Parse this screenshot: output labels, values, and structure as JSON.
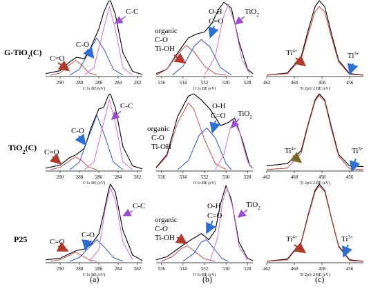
{
  "row_labels": [
    "G-TiO2(C)",
    "TiO2(C)",
    "P25"
  ],
  "panel_labels": [
    "(a)",
    "(b)",
    "(c)"
  ],
  "colors": {
    "envelope": "#111111",
    "fit_c_c": "#d070c8",
    "fit_c_o": "#3050c0",
    "fit_co": "#c05050",
    "fit_ti4": "#c04040",
    "arrow_red": "#b03a2e",
    "arrow_blue": "#2f6fd0",
    "arrow_purple": "#9b4dca",
    "arrow_olive": "#7a6a2a"
  },
  "chart_data": [
    {
      "type": "line",
      "panel": "a",
      "row": "G-TiO2(C)",
      "xlabel": "C 1s   BE (eV)",
      "xlim": [
        291.5,
        281.5
      ],
      "xticks": [
        290,
        288,
        286,
        284,
        282
      ],
      "annotations": [
        "C=O",
        "C-O",
        "C-C"
      ],
      "series": [
        {
          "role": "envelope",
          "x": [
            291.5,
            290,
            289,
            288.3,
            287.5,
            286.8,
            286,
            285.5,
            285,
            284.8,
            284.3,
            283.5,
            282.5,
            281.5
          ],
          "values": [
            0.02,
            0.06,
            0.18,
            0.24,
            0.22,
            0.38,
            0.62,
            0.84,
            0.99,
            1.0,
            0.82,
            0.3,
            0.05,
            0.01
          ]
        },
        {
          "role": "component",
          "name": "C=O",
          "x": [
            291,
            290,
            289,
            288.4,
            287.8,
            287,
            286.2
          ],
          "values": [
            0.0,
            0.03,
            0.14,
            0.2,
            0.14,
            0.03,
            0.0
          ]
        },
        {
          "role": "component",
          "name": "C-O",
          "x": [
            289,
            288,
            287,
            286.2,
            285.4,
            284.5,
            283.5
          ],
          "values": [
            0.0,
            0.08,
            0.32,
            0.5,
            0.33,
            0.08,
            0.0
          ]
        },
        {
          "role": "component",
          "name": "C-C",
          "x": [
            287.5,
            286.5,
            285.5,
            284.9,
            284.3,
            283.5,
            282.5
          ],
          "values": [
            0.0,
            0.1,
            0.62,
            0.92,
            0.62,
            0.1,
            0.0
          ]
        }
      ]
    },
    {
      "type": "line",
      "panel": "b",
      "row": "G-TiO2(C)",
      "xlabel": "O 1s   BE (eV)",
      "xlim": [
        536.5,
        527.5
      ],
      "xticks": [
        536,
        534,
        532,
        530,
        528
      ],
      "annotations": [
        "organic",
        "C-O",
        "Ti-OH",
        "O-H",
        "C=O",
        "TiO2"
      ],
      "series": [
        {
          "role": "envelope",
          "x": [
            536.5,
            535.5,
            534.5,
            533.5,
            532.8,
            532,
            531.3,
            530.7,
            530.2,
            529.5,
            528.8,
            528,
            527.5
          ],
          "values": [
            0.02,
            0.08,
            0.3,
            0.5,
            0.55,
            0.58,
            0.7,
            0.88,
            0.98,
            0.9,
            0.45,
            0.08,
            0.02
          ]
        },
        {
          "role": "component",
          "name": "organic C-O Ti-OH",
          "x": [
            536.5,
            535.5,
            534.5,
            533.7,
            533,
            532,
            531,
            530
          ],
          "values": [
            0.0,
            0.08,
            0.28,
            0.4,
            0.32,
            0.12,
            0.02,
            0.0
          ]
        },
        {
          "role": "component",
          "name": "O-H C=O",
          "x": [
            535,
            534,
            533,
            532.3,
            531.5,
            530.5,
            529.5
          ],
          "values": [
            0.0,
            0.12,
            0.38,
            0.48,
            0.38,
            0.1,
            0.0
          ]
        },
        {
          "role": "component",
          "name": "TiO2",
          "x": [
            532,
            531,
            530.3,
            529.8,
            529.2,
            528.5,
            527.8
          ],
          "values": [
            0.0,
            0.25,
            0.75,
            0.95,
            0.7,
            0.2,
            0.02
          ]
        }
      ]
    },
    {
      "type": "line",
      "panel": "c",
      "row": "G-TiO2(C)",
      "xlabel": "Ti   2p3/ 2   BE  (eV)",
      "xlim": [
        462,
        455
      ],
      "xticks": [
        462,
        460,
        458,
        456
      ],
      "annotations": [
        "Ti4+",
        "Ti3+"
      ],
      "series": [
        {
          "role": "envelope",
          "x": [
            462,
            460.5,
            459.5,
            459,
            458.5,
            458.2,
            457.8,
            457.3,
            456.8,
            456,
            455
          ],
          "values": [
            0.0,
            0.03,
            0.25,
            0.6,
            0.92,
            1.0,
            0.92,
            0.55,
            0.2,
            0.02,
            0.0
          ]
        },
        {
          "role": "component",
          "name": "Ti4+",
          "x": [
            462,
            460.5,
            459.5,
            459,
            458.5,
            458.2,
            457.8,
            457.3,
            456.8,
            456,
            455
          ],
          "values": [
            0.0,
            0.02,
            0.22,
            0.55,
            0.85,
            0.92,
            0.85,
            0.5,
            0.18,
            0.01,
            0.0
          ]
        }
      ]
    },
    {
      "type": "line",
      "panel": "a",
      "row": "TiO2(C)",
      "xlabel": "C 1s   BE (eV)",
      "xlim": [
        291.5,
        281.5
      ],
      "xticks": [
        290,
        288,
        286,
        284,
        282
      ],
      "annotations": [
        "C=O",
        "C-O",
        "C-C"
      ],
      "series": [
        {
          "role": "envelope",
          "x": [
            291.5,
            290,
            289,
            288.3,
            287.5,
            286.8,
            286,
            285.5,
            285,
            284.8,
            284.3,
            283.5,
            282.5,
            281.5
          ],
          "values": [
            0.02,
            0.06,
            0.16,
            0.2,
            0.28,
            0.55,
            0.8,
            0.82,
            0.98,
            1.0,
            0.82,
            0.3,
            0.05,
            0.01
          ]
        },
        {
          "role": "component",
          "name": "C=O",
          "x": [
            291,
            290,
            289,
            288.4,
            287.8,
            287,
            286.2
          ],
          "values": [
            0.0,
            0.03,
            0.12,
            0.17,
            0.12,
            0.03,
            0.0
          ]
        },
        {
          "role": "component",
          "name": "C-O",
          "x": [
            289,
            288,
            287,
            286.2,
            285.4,
            284.5,
            283.5
          ],
          "values": [
            0.0,
            0.1,
            0.45,
            0.72,
            0.45,
            0.1,
            0.0
          ]
        },
        {
          "role": "component",
          "name": "C-C",
          "x": [
            287.5,
            286.5,
            285.5,
            284.9,
            284.3,
            283.5,
            282.5
          ],
          "values": [
            0.0,
            0.1,
            0.62,
            0.92,
            0.62,
            0.1,
            0.0
          ]
        }
      ]
    },
    {
      "type": "line",
      "panel": "b",
      "row": "TiO2(C)",
      "xlabel": "O 1s   BE (eV)",
      "xlim": [
        536.5,
        527.5
      ],
      "xticks": [
        536,
        534,
        532,
        530,
        528
      ],
      "annotations": [
        "organic",
        "C-O",
        "Ti-OH",
        "O-H",
        "C=O",
        "TiO2"
      ],
      "series": [
        {
          "role": "envelope",
          "x": [
            536.5,
            535.5,
            534.5,
            533.5,
            533,
            532.3,
            531.5,
            530.5,
            529.8,
            529.2,
            528.5,
            527.8,
            527.5
          ],
          "values": [
            0.03,
            0.2,
            0.7,
            0.97,
            1.0,
            0.92,
            0.8,
            0.58,
            0.62,
            0.68,
            0.4,
            0.06,
            0.02
          ]
        },
        {
          "role": "component",
          "name": "organic C-O Ti-OH",
          "x": [
            536.5,
            535.5,
            534.5,
            533.5,
            533,
            532,
            531,
            530
          ],
          "values": [
            0.02,
            0.18,
            0.62,
            0.88,
            0.8,
            0.4,
            0.08,
            0.0
          ]
        },
        {
          "role": "component",
          "name": "O-H C=O",
          "x": [
            534.5,
            533.5,
            532.5,
            531.8,
            531,
            530,
            529.5
          ],
          "values": [
            0.0,
            0.12,
            0.45,
            0.55,
            0.42,
            0.08,
            0.0
          ]
        },
        {
          "role": "component",
          "name": "TiO2",
          "x": [
            531,
            530.2,
            529.6,
            529.2,
            528.7,
            528,
            527.5
          ],
          "values": [
            0.0,
            0.2,
            0.55,
            0.62,
            0.48,
            0.1,
            0.02
          ]
        }
      ]
    },
    {
      "type": "line",
      "panel": "c",
      "row": "TiO2(C)",
      "xlabel": "Ti   2p3/ 2   BE  (eV)",
      "xlim": [
        462,
        455
      ],
      "xticks": [
        462,
        460,
        458,
        456
      ],
      "annotations": [
        "Ti4+",
        "Ti3+"
      ],
      "series": [
        {
          "role": "envelope",
          "x": [
            462,
            460.5,
            459.5,
            459,
            458.5,
            458.2,
            457.8,
            457.3,
            456.8,
            456,
            455
          ],
          "values": [
            0.05,
            0.08,
            0.25,
            0.6,
            0.92,
            1.0,
            0.92,
            0.55,
            0.2,
            0.05,
            0.04
          ]
        },
        {
          "role": "component",
          "name": "Ti4+",
          "x": [
            462,
            460.5,
            459.5,
            459,
            458.5,
            458.2,
            457.8,
            457.3,
            456.8,
            456,
            455
          ],
          "values": [
            0.0,
            0.02,
            0.22,
            0.58,
            0.9,
            0.98,
            0.9,
            0.52,
            0.18,
            0.01,
            0.0
          ]
        }
      ]
    },
    {
      "type": "line",
      "panel": "a",
      "row": "P25",
      "xlabel": "C 1s   BE (eV)",
      "xlim": [
        291.5,
        281.5
      ],
      "xticks": [
        290,
        288,
        286,
        284,
        282
      ],
      "annotations": [
        "C=O",
        "C-O",
        "C-C"
      ],
      "series": [
        {
          "role": "envelope",
          "x": [
            291.5,
            290,
            289,
            288.3,
            287.5,
            286.8,
            286,
            285.5,
            285,
            284.8,
            284.3,
            283.5,
            282.5,
            281.5
          ],
          "values": [
            0.02,
            0.04,
            0.1,
            0.14,
            0.16,
            0.22,
            0.35,
            0.62,
            0.92,
            1.0,
            0.9,
            0.4,
            0.08,
            0.01
          ]
        },
        {
          "role": "component",
          "name": "C=O",
          "x": [
            291,
            290,
            289,
            288.4,
            287.8,
            287,
            286.2
          ],
          "values": [
            0.0,
            0.02,
            0.08,
            0.12,
            0.08,
            0.02,
            0.0
          ]
        },
        {
          "role": "component",
          "name": "C-O",
          "x": [
            289,
            288,
            287,
            286.2,
            285.4,
            284.5,
            283.5
          ],
          "values": [
            0.0,
            0.05,
            0.18,
            0.28,
            0.18,
            0.05,
            0.0
          ]
        },
        {
          "role": "component",
          "name": "C-C",
          "x": [
            287,
            286,
            285.3,
            284.8,
            284.3,
            283.5,
            282.5
          ],
          "values": [
            0.0,
            0.15,
            0.7,
            0.95,
            0.8,
            0.25,
            0.02
          ]
        }
      ]
    },
    {
      "type": "line",
      "panel": "b",
      "row": "P25",
      "xlabel": "O 1s   BE (eV)",
      "xlim": [
        536.5,
        527.5
      ],
      "xticks": [
        536,
        534,
        532,
        530,
        528
      ],
      "annotations": [
        "organic",
        "C-O",
        "Ti-OH",
        "O-H",
        "C=O",
        "TiO2"
      ],
      "series": [
        {
          "role": "envelope",
          "x": [
            536.5,
            535.5,
            534.5,
            533.7,
            533,
            532.3,
            531.6,
            531,
            530.5,
            530,
            529.5,
            528.8,
            528,
            527.5
          ],
          "values": [
            0.02,
            0.06,
            0.16,
            0.24,
            0.3,
            0.36,
            0.28,
            0.4,
            0.75,
            0.98,
            0.8,
            0.25,
            0.04,
            0.01
          ]
        },
        {
          "role": "component",
          "name": "organic C-O Ti-OH",
          "x": [
            536,
            535,
            534.2,
            533.6,
            533,
            532,
            531
          ],
          "values": [
            0.0,
            0.06,
            0.16,
            0.2,
            0.14,
            0.03,
            0.0
          ]
        },
        {
          "role": "component",
          "name": "O-H C=O",
          "x": [
            534,
            533,
            532.3,
            531.8,
            531.2,
            530.4,
            529.8
          ],
          "values": [
            0.0,
            0.1,
            0.25,
            0.28,
            0.18,
            0.04,
            0.0
          ]
        },
        {
          "role": "component",
          "name": "TiO2",
          "x": [
            531.5,
            530.8,
            530.3,
            529.9,
            529.4,
            528.8,
            528
          ],
          "values": [
            0.0,
            0.3,
            0.78,
            0.95,
            0.72,
            0.2,
            0.01
          ]
        }
      ]
    },
    {
      "type": "line",
      "panel": "c",
      "row": "P25",
      "xlabel": "Ti   2p3/ 2   BE  (eV)",
      "xlim": [
        462,
        455
      ],
      "xticks": [
        462,
        460,
        458,
        456
      ],
      "annotations": [
        "Ti4+",
        "Ti3+"
      ],
      "series": [
        {
          "role": "envelope",
          "x": [
            462,
            460.5,
            459.5,
            459,
            458.5,
            458.2,
            457.8,
            457.3,
            456.8,
            456,
            455
          ],
          "values": [
            0.0,
            0.03,
            0.25,
            0.6,
            0.92,
            1.0,
            0.92,
            0.55,
            0.2,
            0.02,
            0.0
          ]
        },
        {
          "role": "component",
          "name": "Ti4+",
          "x": [
            462,
            460.5,
            459.5,
            459,
            458.5,
            458.2,
            457.8,
            457.3,
            456.8,
            456,
            455
          ],
          "values": [
            0.0,
            0.02,
            0.24,
            0.58,
            0.9,
            0.98,
            0.9,
            0.54,
            0.19,
            0.01,
            0.0
          ]
        }
      ]
    }
  ],
  "labels": {
    "co_dbl": "C=O",
    "c_o": "C-O",
    "c_c": "C-C",
    "organic": "organic",
    "ti_oh": "Ti-OH",
    "o_h": "O-H",
    "tio": "TiO",
    "sub2": "2",
    "ti": "Ti",
    "sup4": "4+",
    "sup3": "3+",
    "row0_a": "G-TiO",
    "row0_b": "(C)",
    "row1_a": "TiO",
    "row1_b": "(C)"
  }
}
